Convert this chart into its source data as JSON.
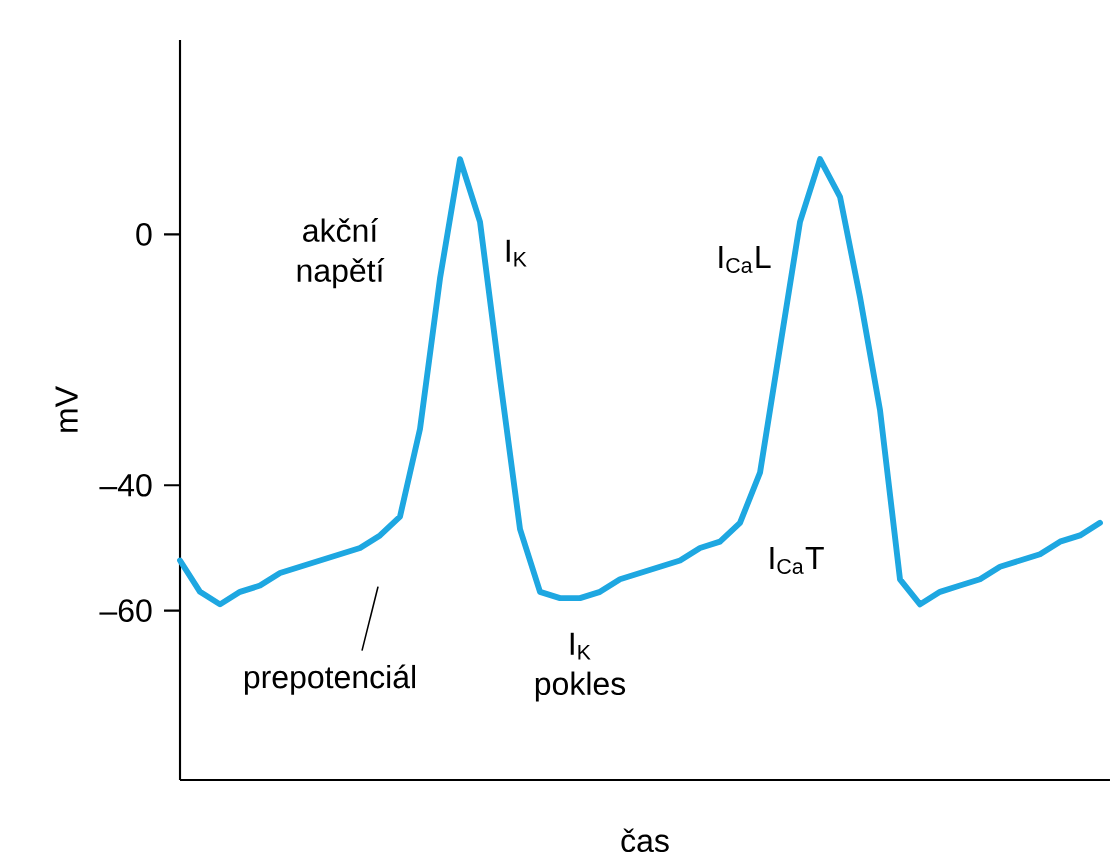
{
  "chart_data": {
    "type": "line",
    "xlabel": "čas",
    "ylabel": "mV",
    "categories": [
      null,
      null,
      null,
      null,
      null,
      null,
      null,
      null,
      null,
      null,
      null,
      null,
      null,
      null,
      null,
      null,
      null,
      null,
      null,
      null,
      null,
      null,
      null,
      null,
      null,
      null,
      null,
      null,
      null,
      null,
      null,
      null,
      null,
      null,
      null,
      null,
      null,
      null,
      null,
      null,
      null,
      null,
      null,
      null,
      null,
      null,
      null
    ],
    "series": [
      {
        "color": "#1ea7e1",
        "values": [
          -52,
          -57,
          -59,
          -57,
          -56,
          -54,
          -53,
          -52,
          -51,
          -50,
          -48,
          -45,
          -31,
          -7,
          12,
          2,
          -23,
          -47,
          -57,
          -58,
          -58,
          -57,
          -55,
          -54,
          -53,
          -52,
          -50,
          -49,
          -46,
          -38,
          -18,
          2,
          12,
          6,
          -10,
          -28,
          -55,
          -59,
          -57,
          -56,
          -55,
          -53,
          -52,
          -51,
          -49,
          -48,
          -46
        ]
      }
    ],
    "ylim": [
      -87,
      31
    ],
    "yticks": [
      0,
      {
        "value": -40,
        "label": "–40"
      },
      {
        "value": -60,
        "label": "–60"
      }
    ],
    "tick_labels": "y",
    "marker": "none",
    "line_style": "solid",
    "annotations": [
      "akční napětí",
      "I$_{K}$",
      "I$_{Ca}$L",
      "I$_{Ca}$T",
      "I$_{K}$ pokles",
      "prepotenciál"
    ]
  }
}
